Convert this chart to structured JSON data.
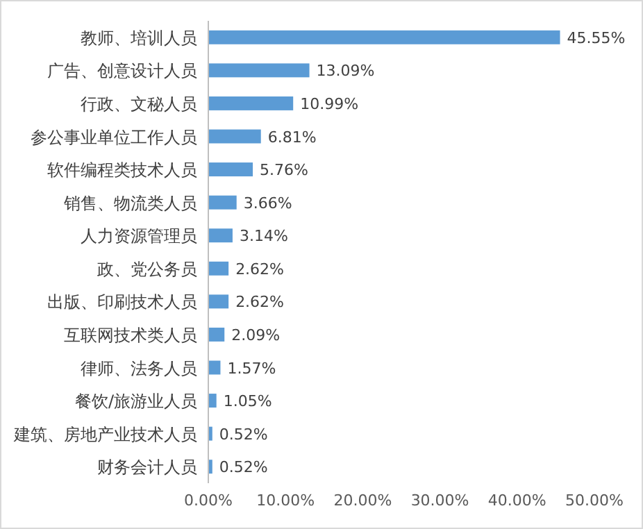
{
  "chart_data": {
    "type": "bar",
    "orientation": "horizontal",
    "categories": [
      "教师、培训人员",
      "广告、创意设计人员",
      "行政、文秘人员",
      "参公事业单位工作人员",
      "软件编程类技术人员",
      "销售、物流类人员",
      "人力资源管理员",
      "政、党公务员",
      "出版、印刷技术人员",
      "互联网技术类人员",
      "律师、法务人员",
      "餐饮/旅游业人员",
      "建筑、房地产业技术人员",
      "财务会计人员"
    ],
    "values": [
      45.55,
      13.09,
      10.99,
      6.81,
      5.76,
      3.66,
      3.14,
      2.62,
      2.62,
      2.09,
      1.57,
      1.05,
      0.52,
      0.52
    ],
    "value_labels": [
      "45.55%",
      "13.09%",
      "10.99%",
      "6.81%",
      "5.76%",
      "3.66%",
      "3.14%",
      "2.62%",
      "2.62%",
      "2.09%",
      "1.57%",
      "1.05%",
      "0.52%",
      "0.52%"
    ],
    "color": "#5b9bd5",
    "xlim": [
      0,
      50
    ],
    "xticks": [
      {
        "value": 0,
        "label": "0.00%"
      },
      {
        "value": 10,
        "label": "10.00%"
      },
      {
        "value": 20,
        "label": "20.00%"
      },
      {
        "value": 30,
        "label": "30.00%"
      },
      {
        "value": 40,
        "label": "40.00%"
      },
      {
        "value": 50,
        "label": "50.00%"
      }
    ]
  }
}
